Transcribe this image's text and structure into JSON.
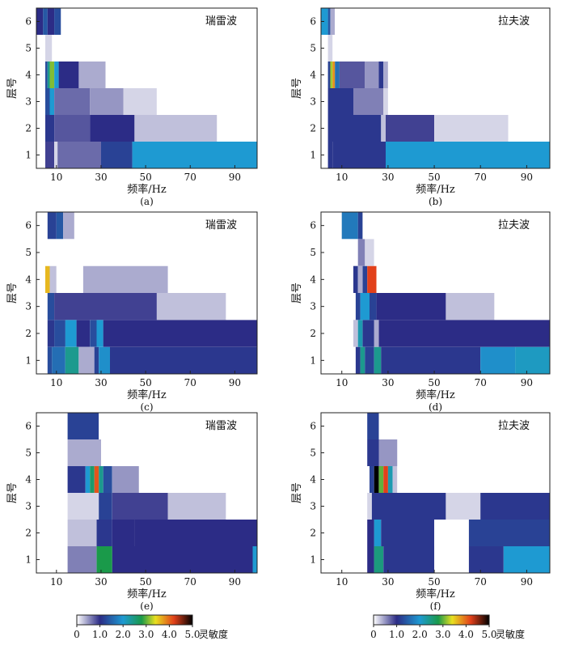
{
  "colorbar": {
    "label": "灵敏度",
    "ticks": [
      "0",
      "1.0",
      "2.0",
      "3.0",
      "4.0",
      "5.0"
    ],
    "range": [
      0,
      5
    ],
    "colormap": [
      "#ffffff",
      "#2c2c86",
      "#1e9ad2",
      "#1a9a4a",
      "#e8e020",
      "#e2401a",
      "#000000"
    ]
  },
  "chart_data": [
    {
      "type": "heatmap",
      "panel": "(a)",
      "title": "瑞雷波",
      "xlabel": "频率/Hz",
      "ylabel": "层号",
      "xticks": [
        10,
        30,
        50,
        70,
        90
      ],
      "yticks": [
        1,
        2,
        3,
        4,
        5,
        6
      ],
      "xlim": [
        1,
        100
      ],
      "ylim": [
        0.5,
        6.5
      ],
      "rows": [
        {
          "layer": 1,
          "segments": [
            [
              5,
              9,
              0.9
            ],
            [
              9,
              10.5,
              0.2
            ],
            [
              10.5,
              30,
              0.7
            ],
            [
              30,
              44,
              1.2
            ],
            [
              44,
              100,
              2.0
            ]
          ]
        },
        {
          "layer": 2,
          "segments": [
            [
              5,
              9,
              1.1
            ],
            [
              9,
              25,
              0.8
            ],
            [
              25,
              45,
              1.0
            ],
            [
              45,
              82,
              0.3
            ],
            [
              82,
              100,
              0.0
            ]
          ]
        },
        {
          "layer": 3,
          "segments": [
            [
              5,
              7,
              1.3
            ],
            [
              7,
              9,
              2.0
            ],
            [
              9,
              25,
              0.7
            ],
            [
              25,
              40,
              0.5
            ],
            [
              40,
              55,
              0.2
            ],
            [
              55,
              100,
              0.0
            ]
          ]
        },
        {
          "layer": 4,
          "segments": [
            [
              5,
              6,
              1.3
            ],
            [
              6,
              7,
              2.4
            ],
            [
              7,
              9,
              3.1
            ],
            [
              9,
              11,
              2.0
            ],
            [
              11,
              20,
              1.0
            ],
            [
              20,
              32,
              0.4
            ],
            [
              32,
              100,
              0.0
            ]
          ]
        },
        {
          "layer": 5,
          "segments": [
            [
              5,
              8,
              0.2
            ],
            [
              8,
              100,
              0.0
            ]
          ]
        },
        {
          "layer": 6,
          "segments": [
            [
              1,
              4,
              1.0
            ],
            [
              4,
              6,
              1.4
            ],
            [
              6,
              9,
              1.0
            ],
            [
              9,
              12,
              1.3
            ],
            [
              12,
              100,
              0.0
            ]
          ]
        }
      ]
    },
    {
      "type": "heatmap",
      "panel": "(b)",
      "title": "拉夫波",
      "xlabel": "频率/Hz",
      "ylabel": "层号",
      "xticks": [
        10,
        30,
        50,
        70,
        90
      ],
      "yticks": [
        1,
        2,
        3,
        4,
        5,
        6
      ],
      "xlim": [
        1,
        100
      ],
      "ylim": [
        0.5,
        6.5
      ],
      "rows": [
        {
          "layer": 1,
          "segments": [
            [
              4,
              6,
              1.1
            ],
            [
              6,
              29,
              1.1
            ],
            [
              29,
              100,
              2.0
            ]
          ]
        },
        {
          "layer": 2,
          "segments": [
            [
              4,
              27,
              1.1
            ],
            [
              27,
              29,
              0.3
            ],
            [
              29,
              50,
              0.9
            ],
            [
              50,
              82,
              0.2
            ],
            [
              82,
              100,
              0.0
            ]
          ]
        },
        {
          "layer": 3,
          "segments": [
            [
              4,
              15,
              1.1
            ],
            [
              15,
              28,
              0.6
            ],
            [
              28,
              30,
              0.2
            ],
            [
              30,
              100,
              0.0
            ]
          ]
        },
        {
          "layer": 4,
          "segments": [
            [
              4,
              5,
              1.2
            ],
            [
              5,
              6,
              3.2
            ],
            [
              6,
              7,
              3.8
            ],
            [
              7,
              9,
              1.6
            ],
            [
              9,
              20,
              0.8
            ],
            [
              20,
              26,
              0.5
            ],
            [
              26,
              28,
              1.1
            ],
            [
              28,
              30,
              0.4
            ],
            [
              30,
              100,
              0.0
            ]
          ]
        },
        {
          "layer": 5,
          "segments": [
            [
              4,
              6,
              0.2
            ],
            [
              6,
              100,
              0.0
            ]
          ]
        },
        {
          "layer": 6,
          "segments": [
            [
              1,
              4,
              2.0
            ],
            [
              4,
              5,
              1.4
            ],
            [
              5,
              7,
              0.4
            ],
            [
              7,
              100,
              0.0
            ]
          ]
        }
      ]
    },
    {
      "type": "heatmap",
      "panel": "(c)",
      "title": "瑞雷波",
      "xlabel": "频率/Hz",
      "ylabel": "层号",
      "xticks": [
        10,
        30,
        50,
        70,
        90
      ],
      "yticks": [
        1,
        2,
        3,
        4,
        5,
        6
      ],
      "xlim": [
        1,
        100
      ],
      "ylim": [
        0.5,
        6.5
      ],
      "rows": [
        {
          "layer": 1,
          "segments": [
            [
              6,
              8,
              1.3
            ],
            [
              8,
              14,
              1.6
            ],
            [
              14,
              20,
              2.4
            ],
            [
              20,
              27,
              0.4
            ],
            [
              27,
              29,
              1.2
            ],
            [
              29,
              34,
              1.9
            ],
            [
              34,
              100,
              1.1
            ]
          ]
        },
        {
          "layer": 2,
          "segments": [
            [
              6,
              9,
              1.1
            ],
            [
              9,
              14,
              1.3
            ],
            [
              14,
              19,
              2.0
            ],
            [
              19,
              25,
              1.0
            ],
            [
              25,
              28,
              1.3
            ],
            [
              28,
              31,
              2.0
            ],
            [
              31,
              100,
              1.0
            ]
          ]
        },
        {
          "layer": 3,
          "segments": [
            [
              6,
              9,
              1.3
            ],
            [
              9,
              55,
              0.9
            ],
            [
              55,
              86,
              0.3
            ],
            [
              86,
              100,
              0.0
            ]
          ]
        },
        {
          "layer": 4,
          "segments": [
            [
              5,
              7,
              3.6
            ],
            [
              7,
              10,
              0.3
            ],
            [
              10,
              22,
              0.0
            ],
            [
              22,
              60,
              0.4
            ],
            [
              60,
              100,
              0.0
            ]
          ]
        },
        {
          "layer": 5,
          "segments": [
            [
              1,
              100,
              0.0
            ]
          ]
        },
        {
          "layer": 6,
          "segments": [
            [
              6,
              10,
              1.2
            ],
            [
              10,
              13,
              1.4
            ],
            [
              13,
              18,
              0.4
            ],
            [
              18,
              100,
              0.0
            ]
          ]
        }
      ]
    },
    {
      "type": "heatmap",
      "panel": "(d)",
      "title": "拉夫波",
      "xlabel": "频率/Hz",
      "ylabel": "层号",
      "xticks": [
        10,
        30,
        50,
        70,
        90
      ],
      "yticks": [
        1,
        2,
        3,
        4,
        5,
        6
      ],
      "xlim": [
        1,
        100
      ],
      "ylim": [
        0.5,
        6.5
      ],
      "rows": [
        {
          "layer": 1,
          "segments": [
            [
              16,
              18,
              1.1
            ],
            [
              18,
              20,
              2.4
            ],
            [
              20,
              24,
              1.2
            ],
            [
              24,
              27,
              2.4
            ],
            [
              27,
              70,
              1.1
            ],
            [
              70,
              85,
              1.9
            ],
            [
              85,
              100,
              2.1
            ]
          ]
        },
        {
          "layer": 2,
          "segments": [
            [
              15,
              17,
              0.3
            ],
            [
              17,
              19,
              2.2
            ],
            [
              19,
              24,
              1.1
            ],
            [
              24,
              26,
              0.4
            ],
            [
              26,
              100,
              1.0
            ]
          ]
        },
        {
          "layer": 3,
          "segments": [
            [
              16,
              18,
              1.2
            ],
            [
              18,
              22,
              2.0
            ],
            [
              22,
              25,
              1.2
            ],
            [
              25,
              55,
              1.0
            ],
            [
              55,
              76,
              0.3
            ],
            [
              76,
              100,
              0.0
            ]
          ]
        },
        {
          "layer": 4,
          "segments": [
            [
              15,
              17,
              1.1
            ],
            [
              17,
              19,
              0.4
            ],
            [
              19,
              21,
              1.2
            ],
            [
              21,
              25,
              4.2
            ],
            [
              25,
              100,
              0.0
            ]
          ]
        },
        {
          "layer": 5,
          "segments": [
            [
              17,
              20,
              0.6
            ],
            [
              20,
              24,
              0.2
            ],
            [
              24,
              100,
              0.0
            ]
          ]
        },
        {
          "layer": 6,
          "segments": [
            [
              10,
              17,
              1.7
            ],
            [
              17,
              19,
              1.2
            ],
            [
              19,
              100,
              0.0
            ]
          ]
        }
      ]
    },
    {
      "type": "heatmap",
      "panel": "(e)",
      "title": "瑞雷波",
      "xlabel": "频率/Hz",
      "ylabel": "层号",
      "xticks": [
        10,
        30,
        50,
        70,
        90
      ],
      "yticks": [
        1,
        2,
        3,
        4,
        5,
        6
      ],
      "xlim": [
        1,
        100
      ],
      "ylim": [
        0.5,
        6.5
      ],
      "rows": [
        {
          "layer": 1,
          "segments": [
            [
              15,
              28,
              0.6
            ],
            [
              28,
              35,
              2.8
            ],
            [
              35,
              98,
              1.0
            ],
            [
              98,
              100,
              2.0
            ]
          ]
        },
        {
          "layer": 2,
          "segments": [
            [
              15,
              28,
              0.3
            ],
            [
              28,
              35,
              1.1
            ],
            [
              35,
              45,
              1.0
            ],
            [
              45,
              100,
              1.0
            ]
          ]
        },
        {
          "layer": 3,
          "segments": [
            [
              15,
              29,
              0.2
            ],
            [
              29,
              35,
              1.2
            ],
            [
              35,
              60,
              0.9
            ],
            [
              60,
              86,
              0.3
            ],
            [
              86,
              100,
              0.0
            ]
          ]
        },
        {
          "layer": 4,
          "segments": [
            [
              15,
              23,
              1.1
            ],
            [
              23,
              25,
              2.0
            ],
            [
              25,
              27,
              2.6
            ],
            [
              27,
              29,
              4.1
            ],
            [
              29,
              31,
              2.4
            ],
            [
              31,
              35,
              1.3
            ],
            [
              35,
              47,
              0.5
            ],
            [
              47,
              100,
              0.0
            ]
          ]
        },
        {
          "layer": 5,
          "segments": [
            [
              15,
              30,
              0.4
            ],
            [
              30,
              100,
              0.0
            ]
          ]
        },
        {
          "layer": 6,
          "segments": [
            [
              15,
              29,
              1.2
            ],
            [
              29,
              100,
              0.0
            ]
          ]
        }
      ]
    },
    {
      "type": "heatmap",
      "panel": "(f)",
      "title": "拉夫波",
      "xlabel": "频率/Hz",
      "ylabel": "层号",
      "xticks": [
        10,
        30,
        50,
        70,
        90
      ],
      "yticks": [
        1,
        2,
        3,
        4,
        5,
        6
      ],
      "xlim": [
        1,
        100
      ],
      "ylim": [
        0.5,
        6.5
      ],
      "rows": [
        {
          "layer": 1,
          "segments": [
            [
              21,
              24,
              1.0
            ],
            [
              24,
              28,
              2.5
            ],
            [
              28,
              50,
              1.1
            ],
            [
              50,
              65,
              0.0
            ],
            [
              65,
              80,
              1.1
            ],
            [
              80,
              100,
              2.0
            ]
          ]
        },
        {
          "layer": 2,
          "segments": [
            [
              21,
              24,
              1.0
            ],
            [
              24,
              27,
              2.0
            ],
            [
              27,
              50,
              1.1
            ],
            [
              50,
              65,
              0.0
            ],
            [
              65,
              100,
              1.2
            ]
          ]
        },
        {
          "layer": 3,
          "segments": [
            [
              21,
              23,
              0.2
            ],
            [
              23,
              55,
              1.1
            ],
            [
              55,
              70,
              0.2
            ],
            [
              70,
              100,
              1.1
            ]
          ]
        },
        {
          "layer": 4,
          "segments": [
            [
              22,
              24,
              1.2
            ],
            [
              24,
              26,
              5.0
            ],
            [
              26,
              28,
              3.0
            ],
            [
              28,
              30,
              4.2
            ],
            [
              30,
              32,
              2.2
            ],
            [
              32,
              34,
              0.3
            ],
            [
              34,
              100,
              0.0
            ]
          ]
        },
        {
          "layer": 5,
          "segments": [
            [
              21,
              26,
              1.1
            ],
            [
              26,
              34,
              0.5
            ],
            [
              34,
              100,
              0.0
            ]
          ]
        },
        {
          "layer": 6,
          "segments": [
            [
              21,
              26,
              1.2
            ],
            [
              26,
              100,
              0.0
            ]
          ]
        }
      ]
    }
  ]
}
